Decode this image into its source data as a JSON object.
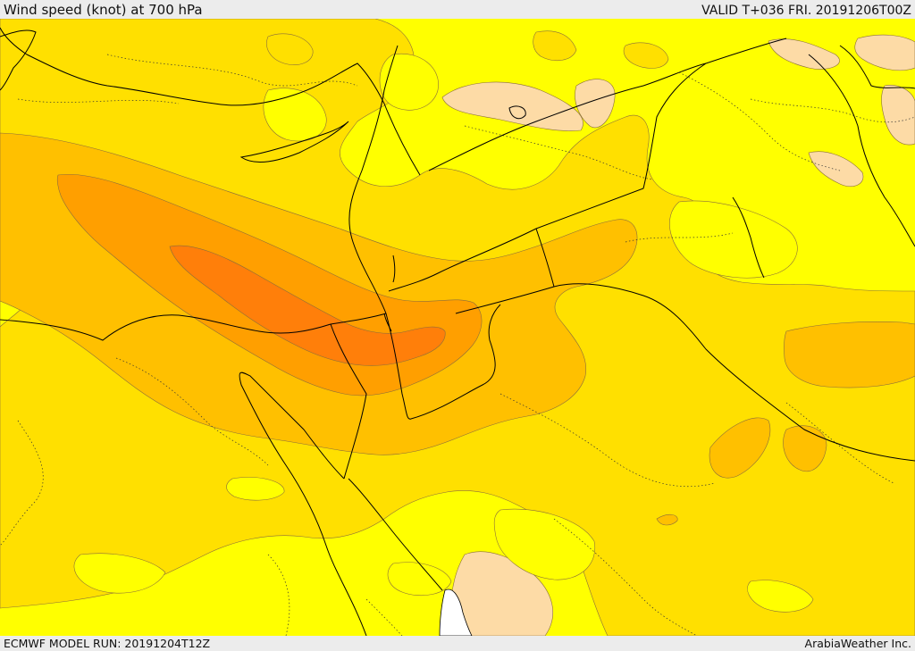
{
  "header": {
    "title": "Wind speed (knot) at 700 hPa",
    "valid": "VALID T+036 FRI. 20191206T00Z"
  },
  "footer": {
    "model_run": "ECMWF MODEL RUN: 20191204T12Z",
    "credit": "ArabiaWeather Inc."
  },
  "colors": {
    "lightest": "#fddba6",
    "low": "#ffff00",
    "mid1": "#ffe000",
    "mid2": "#ffc000",
    "mid3": "#ff9f00",
    "high": "#ff7f0a",
    "water": "#ffffff",
    "contour": "#8a6d3b",
    "border": "#000000"
  }
}
